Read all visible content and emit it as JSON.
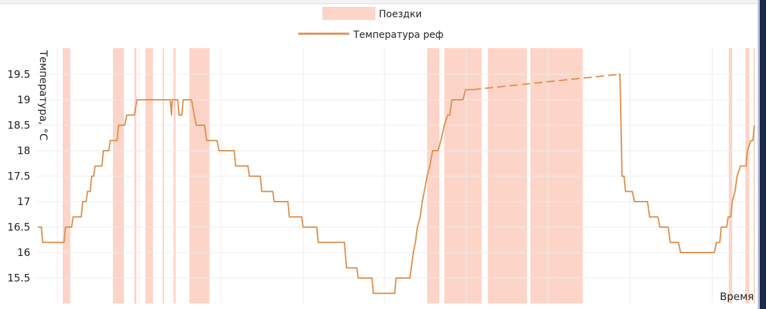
{
  "chart_data": {
    "type": "line",
    "title": "",
    "xlabel": "Время",
    "ylabel": "Температура, °C",
    "ylim": [
      15.05,
      20.0
    ],
    "xlim": [
      52,
      1100
    ],
    "x_unit_note": "time index (no x tick labels shown)",
    "yticks": [
      "15.5",
      "16",
      "16.5",
      "17",
      "17.5",
      "18",
      "18.5",
      "19",
      "19.5"
    ],
    "ytick_values": [
      15.5,
      16,
      16.5,
      17,
      17.5,
      18,
      18.5,
      19,
      19.5
    ],
    "xgrid": [
      83,
      202,
      321,
      440,
      558,
      677,
      796,
      915,
      1034
    ],
    "grid": true,
    "legend": {
      "placement": "top-center",
      "items": [
        {
          "label": "Поездки",
          "type": "span"
        },
        {
          "label": "Температура реф",
          "type": "line"
        }
      ]
    },
    "colors": {
      "trips": "#fdd5c8",
      "line": "#de9150",
      "grid": "#ececec"
    },
    "trips": [
      [
        91,
        102
      ],
      [
        164,
        180
      ],
      [
        195,
        198
      ],
      [
        211,
        222
      ],
      [
        236,
        238
      ],
      [
        252,
        255
      ],
      [
        275,
        304
      ],
      [
        620,
        638
      ],
      [
        645,
        699
      ],
      [
        708,
        765
      ],
      [
        770,
        846
      ],
      [
        1058,
        1063
      ],
      [
        1082,
        1088
      ],
      [
        1094,
        1096
      ]
    ],
    "series": [
      {
        "name": "Температура реф",
        "segments": [
          {
            "style": "solid",
            "points": [
              [
                55,
                16.5
              ],
              [
                60,
                16.5
              ],
              [
                62,
                16.2
              ],
              [
                93,
                16.2
              ],
              [
                95,
                16.5
              ],
              [
                104,
                16.5
              ],
              [
                106,
                16.7
              ],
              [
                118,
                16.7
              ],
              [
                120,
                17.0
              ],
              [
                125,
                17.0
              ],
              [
                127,
                17.2
              ],
              [
                131,
                17.2
              ],
              [
                133,
                17.5
              ],
              [
                136,
                17.5
              ],
              [
                138,
                17.7
              ],
              [
                148,
                17.7
              ],
              [
                150,
                18.0
              ],
              [
                158,
                18.0
              ],
              [
                160,
                18.2
              ],
              [
                170,
                18.2
              ],
              [
                172,
                18.5
              ],
              [
                181,
                18.5
              ],
              [
                184,
                18.7
              ],
              [
                195,
                18.7
              ],
              [
                199,
                19.0
              ],
              [
                247,
                19.0
              ],
              [
                249,
                18.7
              ],
              [
                250,
                19.0
              ],
              [
                258,
                19.0
              ],
              [
                260,
                18.7
              ],
              [
                264,
                18.7
              ],
              [
                266,
                19.0
              ],
              [
                278,
                19.0
              ],
              [
                282,
                18.7
              ],
              [
                285,
                18.5
              ],
              [
                297,
                18.5
              ],
              [
                300,
                18.2
              ],
              [
                315,
                18.2
              ],
              [
                318,
                18.0
              ],
              [
                340,
                18.0
              ],
              [
                342,
                17.7
              ],
              [
                360,
                17.7
              ],
              [
                362,
                17.5
              ],
              [
                378,
                17.5
              ],
              [
                380,
                17.2
              ],
              [
                396,
                17.2
              ],
              [
                398,
                17.0
              ],
              [
                418,
                17.0
              ],
              [
                420,
                16.7
              ],
              [
                438,
                16.7
              ],
              [
                440,
                16.5
              ],
              [
                460,
                16.5
              ],
              [
                462,
                16.2
              ],
              [
                500,
                16.2
              ],
              [
                503,
                15.7
              ],
              [
                518,
                15.7
              ],
              [
                520,
                15.5
              ],
              [
                540,
                15.5
              ],
              [
                542,
                15.2
              ],
              [
                573,
                15.2
              ],
              [
                575,
                15.5
              ],
              [
                595,
                15.5
              ],
              [
                597,
                15.7
              ],
              [
                600,
                16.0
              ],
              [
                603,
                16.2
              ],
              [
                606,
                16.5
              ],
              [
                610,
                16.7
              ],
              [
                613,
                17.0
              ],
              [
                616,
                17.2
              ],
              [
                620,
                17.5
              ],
              [
                624,
                17.7
              ],
              [
                628,
                18.0
              ],
              [
                636,
                18.0
              ],
              [
                640,
                18.2
              ],
              [
                645,
                18.5
              ],
              [
                650,
                18.7
              ],
              [
                653,
                18.7
              ],
              [
                656,
                19.0
              ],
              [
                672,
                19.0
              ],
              [
                676,
                19.2
              ],
              [
                686,
                19.2
              ]
            ]
          },
          {
            "style": "dashed",
            "points": [
              [
                686,
                19.2
              ],
              [
                898,
                19.5
              ]
            ]
          },
          {
            "style": "solid",
            "points": [
              [
                898,
                19.5
              ],
              [
                900,
                19.5
              ],
              [
                903,
                17.5
              ],
              [
                906,
                17.5
              ],
              [
                908,
                17.2
              ],
              [
                918,
                17.2
              ],
              [
                921,
                17.0
              ],
              [
                940,
                17.0
              ],
              [
                943,
                16.7
              ],
              [
                955,
                16.7
              ],
              [
                958,
                16.5
              ],
              [
                970,
                16.5
              ],
              [
                973,
                16.2
              ],
              [
                985,
                16.2
              ],
              [
                988,
                16.0
              ],
              [
                1037,
                16.0
              ],
              [
                1040,
                16.2
              ],
              [
                1045,
                16.2
              ],
              [
                1047,
                16.5
              ],
              [
                1055,
                16.5
              ],
              [
                1057,
                16.7
              ],
              [
                1061,
                16.7
              ],
              [
                1063,
                17.0
              ],
              [
                1067,
                17.2
              ],
              [
                1070,
                17.5
              ],
              [
                1075,
                17.7
              ],
              [
                1083,
                17.7
              ],
              [
                1085,
                18.0
              ],
              [
                1090,
                18.2
              ],
              [
                1093,
                18.2
              ],
              [
                1095,
                18.5
              ]
            ]
          }
        ]
      }
    ]
  }
}
